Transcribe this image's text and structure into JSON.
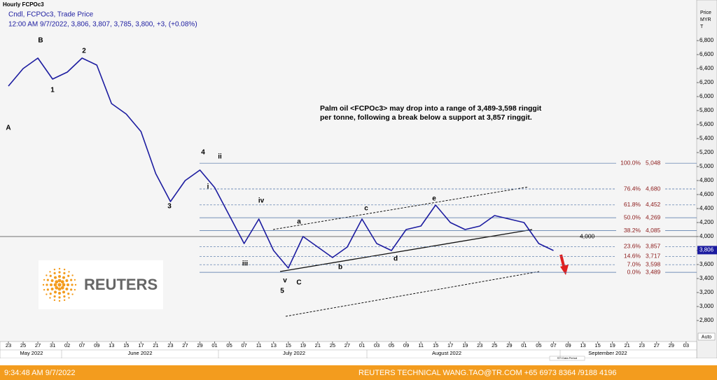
{
  "header": {
    "title": "Hourly FCPOc3",
    "legend": "Cndl, FCPOc3, Trade Price",
    "quote": "12:00 AM 9/7/2022, 3,806, 3,807, 3,785, 3,800, +3, (+0.08%)"
  },
  "chart_data": {
    "type": "line",
    "categories": [
      "23",
      "25",
      "27",
      "31",
      "02",
      "07",
      "09",
      "13",
      "15",
      "17",
      "21",
      "23",
      "27",
      "29",
      "01",
      "05",
      "07",
      "11",
      "13",
      "15",
      "19",
      "21",
      "25",
      "27",
      "01",
      "03",
      "05",
      "09",
      "11",
      "15",
      "17",
      "19",
      "23",
      "25",
      "29",
      "01",
      "05",
      "07",
      "09",
      "13",
      "15",
      "19",
      "21",
      "23",
      "27",
      "29",
      "03"
    ],
    "months": [
      "May 2022",
      "June 2022",
      "July 2022",
      "August 2022",
      "September 2022"
    ],
    "series": [
      {
        "color": "#1c1ca0",
        "values": [
          6150,
          6400,
          6550,
          6250,
          6350,
          6550,
          6450,
          5900,
          5750,
          5500,
          4900,
          4500,
          4800,
          4950,
          4700,
          4300,
          3900,
          4250,
          3800,
          3550,
          4000,
          3850,
          3700,
          3850,
          4250,
          3900,
          3800,
          4100,
          4150,
          4450,
          4200,
          4100,
          4150,
          4300,
          4250,
          4200,
          3900,
          3800,
          null,
          null,
          null,
          null,
          null,
          null,
          null,
          null,
          null
        ]
      }
    ],
    "ylim": [
      2500,
      7280
    ],
    "yticks": [
      {
        "value": 2800,
        "label": "2,800"
      },
      {
        "value": 3000,
        "label": "3,000"
      },
      {
        "value": 3200,
        "label": "3,200"
      },
      {
        "value": 3400,
        "label": "3,400"
      },
      {
        "value": 3600,
        "label": "3,600"
      },
      {
        "value": 3800,
        "label": "3,800"
      },
      {
        "value": 4000,
        "label": "4,000"
      },
      {
        "value": 4200,
        "label": "4,200"
      },
      {
        "value": 4400,
        "label": "4,400"
      },
      {
        "value": 4600,
        "label": "4,600"
      },
      {
        "value": 4800,
        "label": "4,800"
      },
      {
        "value": 5000,
        "label": "5,000"
      },
      {
        "value": 5200,
        "label": "5,200"
      },
      {
        "value": 5400,
        "label": "5,400"
      },
      {
        "value": 5600,
        "label": "5,600"
      },
      {
        "value": 5800,
        "label": "5,800"
      },
      {
        "value": 6000,
        "label": "6,000"
      },
      {
        "value": 6200,
        "label": "6,200"
      },
      {
        "value": 6400,
        "label": "6,400"
      },
      {
        "value": 6600,
        "label": "6,600"
      },
      {
        "value": 6800,
        "label": "6,800"
      }
    ],
    "y_axis": [
      "Price",
      "MYR",
      "T"
    ],
    "grid": false,
    "current_price": {
      "value": 3806,
      "label": "3,806"
    },
    "support": {
      "value": 4000,
      "label": "4,000"
    },
    "fib_levels": [
      {
        "ratio": "100.0%",
        "value": 5048,
        "label": "5,048"
      },
      {
        "ratio": "76.4%",
        "value": 4680,
        "label": "4,680"
      },
      {
        "ratio": "61.8%",
        "value": 4452,
        "label": "4,452"
      },
      {
        "ratio": "50.0%",
        "value": 4269,
        "label": "4,269"
      },
      {
        "ratio": "38.2%",
        "value": 4085,
        "label": "4,085"
      },
      {
        "ratio": "23.6%",
        "value": 3857,
        "label": "3,857"
      },
      {
        "ratio": "14.6%",
        "value": 3717,
        "label": "3,717"
      },
      {
        "ratio": "7.0%",
        "value": 3598,
        "label": "3,598"
      },
      {
        "ratio": "0.0%",
        "value": 3489,
        "label": "3,489"
      }
    ],
    "wave_labels": [
      "A",
      "B",
      "1",
      "2",
      "3",
      "4",
      "ii",
      "i",
      "iv",
      "iii",
      "v",
      "5",
      "C",
      "a",
      "b",
      "c",
      "d",
      "e"
    ],
    "annotation": [
      "Palm oil <FCPOc3> may drop into a range of 3,489-3,598 ringgit",
      "per tonne, following a break below a support at 3,857 ringgit."
    ],
    "period_note": "STI Data Period",
    "auto": "Auto"
  },
  "logo": "REUTERS",
  "footer": {
    "time": "9:34:48 AM 9/7/2022",
    "contact": "REUTERS TECHNICAL  WANG.TAO@TR.COM  +65 6973 8364 /9188 4196"
  }
}
